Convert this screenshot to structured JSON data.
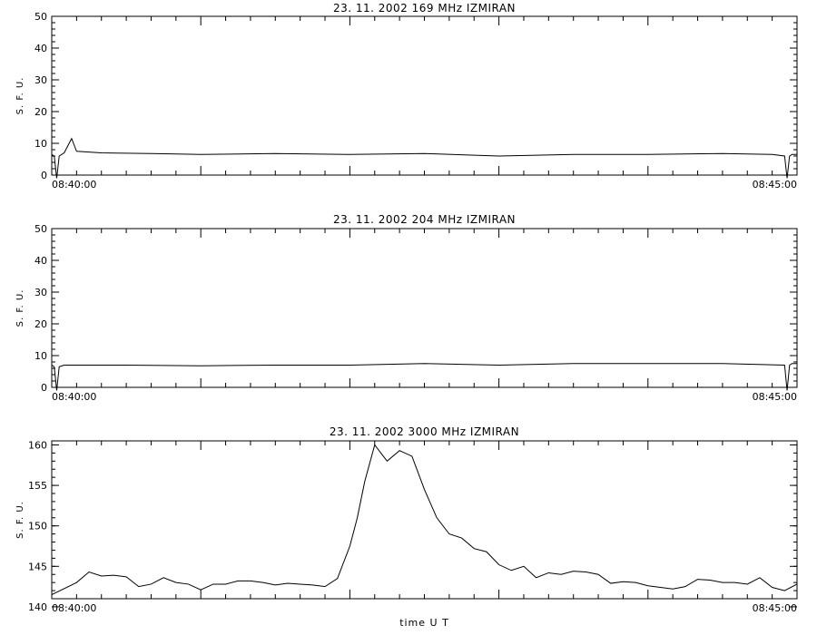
{
  "chart_data": [
    {
      "type": "line",
      "title": "23.  11.  2002    169 MHz    IZMIRAN",
      "ylabel": "S. F. U.",
      "xlabel": "",
      "ylim": [
        0,
        50
      ],
      "yticks": [
        0,
        10,
        20,
        30,
        40,
        50
      ],
      "xlim": [
        "08:40:00",
        "08:45:00"
      ],
      "xtick_labels": [
        "08:40:00",
        "08:45:00"
      ],
      "series": [
        {
          "x": [
            "08:40:00",
            "08:40:01",
            "08:40:02",
            "08:40:03",
            "08:40:05",
            "08:40:08",
            "08:40:10",
            "08:40:20",
            "08:40:40",
            "08:41:00",
            "08:41:30",
            "08:42:00",
            "08:42:30",
            "08:43:00",
            "08:43:30",
            "08:44:00",
            "08:44:30",
            "08:44:50",
            "08:44:55",
            "08:44:56",
            "08:44:57",
            "08:44:58",
            "08:45:00"
          ],
          "values": [
            6.5,
            6.0,
            -1.0,
            6.0,
            7.0,
            11.5,
            7.5,
            7.0,
            6.8,
            6.5,
            6.8,
            6.5,
            6.8,
            6.0,
            6.5,
            6.5,
            6.8,
            6.5,
            6.0,
            -1.0,
            6.0,
            6.5,
            6.5
          ]
        }
      ]
    },
    {
      "type": "line",
      "title": "23.  11.  2002    204 MHz    IZMIRAN",
      "ylabel": "S. F. U.",
      "xlabel": "",
      "ylim": [
        0,
        50
      ],
      "yticks": [
        0,
        10,
        20,
        30,
        40,
        50
      ],
      "xlim": [
        "08:40:00",
        "08:45:00"
      ],
      "xtick_labels": [
        "08:40:00",
        "08:45:00"
      ],
      "series": [
        {
          "x": [
            "08:40:00",
            "08:40:01",
            "08:40:02",
            "08:40:03",
            "08:40:05",
            "08:40:30",
            "08:41:00",
            "08:41:30",
            "08:42:00",
            "08:42:30",
            "08:43:00",
            "08:43:30",
            "08:44:00",
            "08:44:30",
            "08:44:55",
            "08:44:56",
            "08:44:57",
            "08:44:58",
            "08:45:00"
          ],
          "values": [
            7.0,
            6.5,
            -1.0,
            6.5,
            7.0,
            7.0,
            6.8,
            7.0,
            7.0,
            7.5,
            7.0,
            7.5,
            7.5,
            7.5,
            7.0,
            -1.0,
            7.0,
            7.5,
            7.5
          ]
        }
      ]
    },
    {
      "type": "line",
      "title": "23.  11.  2002    3000 MHz    IZMIRAN",
      "ylabel": "S. F. U.",
      "xlabel": "time  U T",
      "ylim": [
        141,
        160.5
      ],
      "yticks": [
        140,
        145,
        150,
        155,
        160
      ],
      "xlim": [
        "08:40:00",
        "08:45:00"
      ],
      "xtick_labels": [
        "08:40:00",
        "08:45:00"
      ],
      "series": [
        {
          "x": [
            "08:40:00",
            "08:40:10",
            "08:40:15",
            "08:40:20",
            "08:40:25",
            "08:40:30",
            "08:40:35",
            "08:40:40",
            "08:40:45",
            "08:40:50",
            "08:40:55",
            "08:41:00",
            "08:41:05",
            "08:41:10",
            "08:41:15",
            "08:41:20",
            "08:41:25",
            "08:41:30",
            "08:41:35",
            "08:41:40",
            "08:41:45",
            "08:41:50",
            "08:41:55",
            "08:42:00",
            "08:42:03",
            "08:42:06",
            "08:42:10",
            "08:42:15",
            "08:42:20",
            "08:42:25",
            "08:42:30",
            "08:42:35",
            "08:42:40",
            "08:42:45",
            "08:42:50",
            "08:42:55",
            "08:43:00",
            "08:43:05",
            "08:43:10",
            "08:43:15",
            "08:43:20",
            "08:43:25",
            "08:43:30",
            "08:43:35",
            "08:43:40",
            "08:43:45",
            "08:43:50",
            "08:43:55",
            "08:44:00",
            "08:44:05",
            "08:44:10",
            "08:44:15",
            "08:44:20",
            "08:44:25",
            "08:44:30",
            "08:44:35",
            "08:44:40",
            "08:44:45",
            "08:44:50",
            "08:44:55",
            "08:45:00"
          ],
          "values": [
            141.5,
            143.0,
            144.3,
            143.8,
            143.9,
            143.7,
            142.5,
            142.8,
            143.6,
            143.0,
            142.8,
            142.1,
            142.8,
            142.8,
            143.2,
            143.2,
            143.0,
            142.7,
            142.9,
            142.8,
            142.7,
            142.5,
            143.5,
            147.5,
            151.0,
            155.5,
            160.0,
            158.0,
            159.3,
            158.6,
            154.5,
            151.0,
            149.0,
            148.5,
            147.2,
            146.8,
            145.2,
            144.5,
            145.0,
            143.6,
            144.2,
            144.0,
            144.4,
            144.3,
            144.0,
            142.9,
            143.1,
            143.0,
            142.6,
            142.4,
            142.2,
            142.5,
            143.4,
            143.3,
            143.0,
            143.0,
            142.8,
            143.6,
            142.4,
            142.0,
            142.8
          ]
        }
      ]
    }
  ]
}
